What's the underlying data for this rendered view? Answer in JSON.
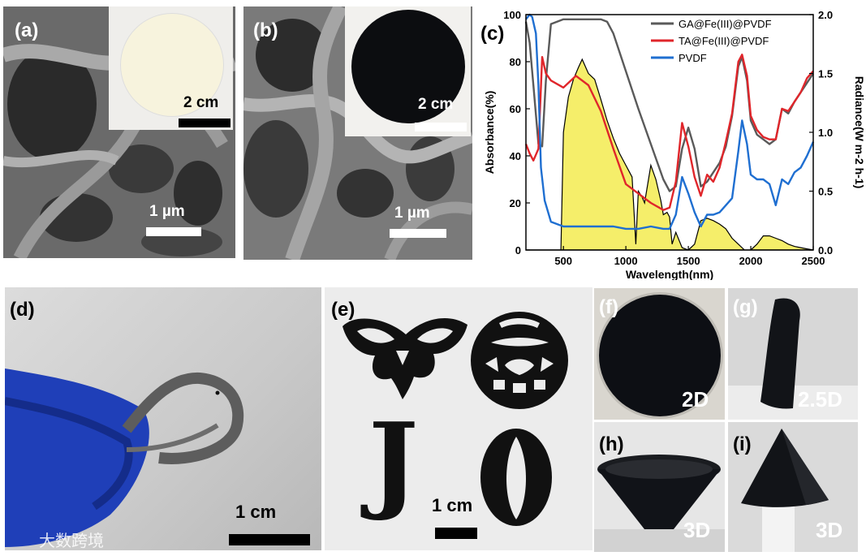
{
  "panels": {
    "a": {
      "label": "(a)",
      "inset_scale": "2 cm",
      "scale": "1 µm"
    },
    "b": {
      "label": "(b)",
      "inset_scale": "2 cm",
      "scale": "1 µm"
    },
    "c": {
      "label": "(c)"
    },
    "d": {
      "label": "(d)",
      "scale": "1 cm"
    },
    "e": {
      "label": "(e)",
      "scale": "1 cm",
      "letters": [
        "J",
        "O"
      ]
    },
    "f": {
      "label": "(f)",
      "tag": "2D"
    },
    "g": {
      "label": "(g)",
      "tag": "2.5D"
    },
    "h": {
      "label": "(h)",
      "tag": "3D"
    },
    "i": {
      "label": "(i)",
      "tag": "3D"
    }
  },
  "watermark": "大数跨境",
  "chart_data": {
    "type": "line",
    "xlabel": "Wavelength(nm)",
    "ylabel": "Absorbance(%)",
    "y2label": "Radiance(W m-2 h-1)",
    "xlim": [
      200,
      2500
    ],
    "ylim": [
      0,
      100
    ],
    "y2lim": [
      0,
      2.0
    ],
    "xticks": [
      500,
      1000,
      1500,
      2000,
      2500
    ],
    "yticks": [
      0,
      20,
      40,
      60,
      80,
      100
    ],
    "y2ticks": [
      "0.0",
      "0.5",
      "1.0",
      "1.5",
      "2.0"
    ],
    "legend_position": "top-right",
    "series": [
      {
        "name": "GA@Fe(III)@PVDF",
        "color": "#5a5a5a",
        "x": [
          200,
          230,
          260,
          300,
          330,
          360,
          400,
          500,
          600,
          700,
          800,
          850,
          900,
          1000,
          1100,
          1200,
          1300,
          1350,
          1400,
          1450,
          1500,
          1550,
          1600,
          1650,
          1700,
          1750,
          1800,
          1850,
          1900,
          1930,
          1970,
          2000,
          2050,
          2100,
          2150,
          2200,
          2250,
          2300,
          2350,
          2400,
          2450,
          2500
        ],
        "y": [
          97,
          88,
          70,
          45,
          44,
          72,
          96,
          98,
          98,
          98,
          98,
          97,
          92,
          76,
          60,
          45,
          30,
          25,
          27,
          43,
          52,
          43,
          27,
          29,
          33,
          37,
          44,
          57,
          78,
          82,
          72,
          55,
          49,
          47,
          45,
          47,
          60,
          58,
          63,
          67,
          71,
          75
        ]
      },
      {
        "name": "TA@Fe(III)@PVDF",
        "color": "#e0262b",
        "x": [
          200,
          230,
          260,
          300,
          330,
          360,
          400,
          500,
          600,
          700,
          800,
          900,
          1000,
          1100,
          1200,
          1300,
          1350,
          1400,
          1450,
          1500,
          1550,
          1600,
          1650,
          1700,
          1750,
          1800,
          1850,
          1900,
          1930,
          1970,
          2000,
          2050,
          2100,
          2150,
          2200,
          2250,
          2300,
          2350,
          2400,
          2450,
          2500
        ],
        "y": [
          45,
          41,
          38,
          43,
          82,
          75,
          72,
          69,
          74,
          70,
          59,
          43,
          28,
          24,
          20,
          17,
          18,
          29,
          54,
          44,
          31,
          23,
          32,
          29,
          35,
          46,
          58,
          80,
          83,
          74,
          57,
          51,
          48,
          47,
          47,
          60,
          59,
          63,
          67,
          73,
          76
        ]
      },
      {
        "name": "PVDF",
        "color": "#1f6fd1",
        "x": [
          200,
          230,
          250,
          280,
          300,
          320,
          350,
          400,
          450,
          500,
          600,
          700,
          800,
          900,
          1000,
          1100,
          1200,
          1300,
          1350,
          1400,
          1450,
          1500,
          1550,
          1600,
          1650,
          1700,
          1750,
          1800,
          1850,
          1900,
          1930,
          1970,
          2000,
          2050,
          2100,
          2150,
          2200,
          2250,
          2300,
          2350,
          2400,
          2450,
          2500
        ],
        "y": [
          98,
          100,
          99,
          92,
          70,
          35,
          21,
          12,
          11,
          10,
          10,
          10,
          10,
          10,
          9,
          9,
          10,
          9,
          9,
          15,
          31,
          24,
          16,
          10,
          15,
          15,
          16,
          19,
          22,
          42,
          55,
          45,
          32,
          30,
          30,
          28,
          19,
          30,
          28,
          33,
          35,
          40,
          46
        ]
      },
      {
        "name": "",
        "type": "area",
        "axis": "right",
        "color": "#f5ee6a",
        "stroke": "#000000",
        "x": [
          200,
          480,
          500,
          540,
          580,
          620,
          650,
          700,
          750,
          800,
          850,
          900,
          950,
          1000,
          1050,
          1080,
          1100,
          1130,
          1150,
          1200,
          1240,
          1280,
          1300,
          1330,
          1350,
          1370,
          1400,
          1450,
          1500,
          1550,
          1600,
          1650,
          1700,
          1750,
          1800,
          1850,
          1900,
          1950,
          2000,
          2050,
          2100,
          2150,
          2200,
          2250,
          2300,
          2350,
          2400,
          2450,
          2500
        ],
        "y": [
          0,
          0,
          1.0,
          1.3,
          1.45,
          1.55,
          1.62,
          1.5,
          1.45,
          1.28,
          1.1,
          0.95,
          0.82,
          0.72,
          0.62,
          0.05,
          0.5,
          0.45,
          0.4,
          0.72,
          0.6,
          0.42,
          0.3,
          0.32,
          0.28,
          0.05,
          0.15,
          0.02,
          0.0,
          0.05,
          0.25,
          0.27,
          0.25,
          0.22,
          0.18,
          0.1,
          0.05,
          0.0,
          0.0,
          0.05,
          0.12,
          0.12,
          0.1,
          0.08,
          0.05,
          0.03,
          0.02,
          0.01,
          0.0
        ]
      }
    ]
  }
}
